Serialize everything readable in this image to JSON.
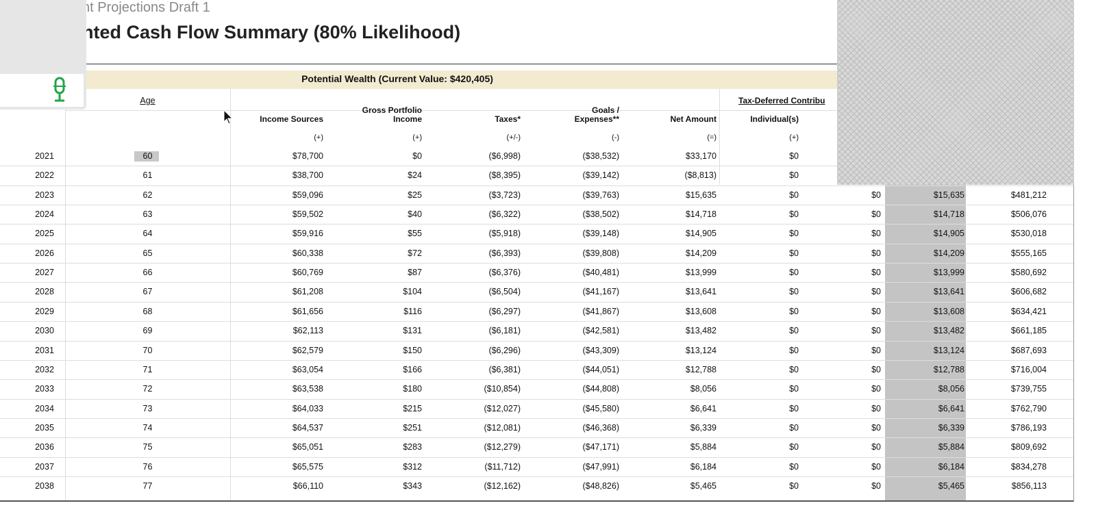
{
  "header": {
    "subtitle": "nt Projections Draft 1",
    "title": "nted Cash Flow Summary (80% Likelihood)"
  },
  "table": {
    "band": "Potential Wealth (Current Value: $420,405)",
    "group_headers": [
      "Age",
      "Tax-Deferred Contribu"
    ],
    "columns": [
      {
        "lines": [
          "Income Sources"
        ],
        "sign": "(+)"
      },
      {
        "lines": [
          "Gross Portfolio",
          "Income"
        ],
        "sign": "(+)"
      },
      {
        "lines": [
          "Taxes*"
        ],
        "sign": "(+/-)"
      },
      {
        "lines": [
          "Goals /",
          "Expenses**"
        ],
        "sign": "(-)"
      },
      {
        "lines": [
          "Net Amount"
        ],
        "sign": "(=)"
      },
      {
        "lines": [
          "Individual(s)"
        ],
        "sign": "(+)"
      }
    ],
    "rows": [
      [
        "2021",
        "60",
        "$78,700",
        "$0",
        "($6,998)",
        "($38,532)",
        "$33,170",
        "$0"
      ],
      [
        "2022",
        "61",
        "$38,700",
        "$24",
        "($8,395)",
        "($39,142)",
        "($8,813)",
        "$0"
      ],
      [
        "2023",
        "62",
        "$59,096",
        "$25",
        "($3,723)",
        "($39,763)",
        "$15,635",
        "$0",
        "$0",
        "$15,635",
        "$481,212"
      ],
      [
        "2024",
        "63",
        "$59,502",
        "$40",
        "($6,322)",
        "($38,502)",
        "$14,718",
        "$0",
        "$0",
        "$14,718",
        "$506,076"
      ],
      [
        "2025",
        "64",
        "$59,916",
        "$55",
        "($5,918)",
        "($39,148)",
        "$14,905",
        "$0",
        "$0",
        "$14,905",
        "$530,018"
      ],
      [
        "2026",
        "65",
        "$60,338",
        "$72",
        "($6,393)",
        "($39,808)",
        "$14,209",
        "$0",
        "$0",
        "$14,209",
        "$555,165"
      ],
      [
        "2027",
        "66",
        "$60,769",
        "$87",
        "($6,376)",
        "($40,481)",
        "$13,999",
        "$0",
        "$0",
        "$13,999",
        "$580,692"
      ],
      [
        "2028",
        "67",
        "$61,208",
        "$104",
        "($6,504)",
        "($41,167)",
        "$13,641",
        "$0",
        "$0",
        "$13,641",
        "$606,682"
      ],
      [
        "2029",
        "68",
        "$61,656",
        "$116",
        "($6,297)",
        "($41,867)",
        "$13,608",
        "$0",
        "$0",
        "$13,608",
        "$634,421"
      ],
      [
        "2030",
        "69",
        "$62,113",
        "$131",
        "($6,181)",
        "($42,581)",
        "$13,482",
        "$0",
        "$0",
        "$13,482",
        "$661,185"
      ],
      [
        "2031",
        "70",
        "$62,579",
        "$150",
        "($6,296)",
        "($43,309)",
        "$13,124",
        "$0",
        "$0",
        "$13,124",
        "$687,693"
      ],
      [
        "2032",
        "71",
        "$63,054",
        "$166",
        "($6,381)",
        "($44,051)",
        "$12,788",
        "$0",
        "$0",
        "$12,788",
        "$716,004"
      ],
      [
        "2033",
        "72",
        "$63,538",
        "$180",
        "($10,854)",
        "($44,808)",
        "$8,056",
        "$0",
        "$0",
        "$8,056",
        "$739,755"
      ],
      [
        "2034",
        "73",
        "$64,033",
        "$215",
        "($12,027)",
        "($45,580)",
        "$6,641",
        "$0",
        "$0",
        "$6,641",
        "$762,790"
      ],
      [
        "2035",
        "74",
        "$64,537",
        "$251",
        "($12,081)",
        "($46,368)",
        "$6,339",
        "$0",
        "$0",
        "$6,339",
        "$786,193"
      ],
      [
        "2036",
        "75",
        "$65,051",
        "$283",
        "($12,279)",
        "($47,171)",
        "$5,884",
        "$0",
        "$0",
        "$5,884",
        "$809,692"
      ],
      [
        "2037",
        "76",
        "$65,575",
        "$312",
        "($11,712)",
        "($47,991)",
        "$6,184",
        "$0",
        "$0",
        "$6,184",
        "$834,278"
      ],
      [
        "2038",
        "77",
        "$66,110",
        "$343",
        "($12,162)",
        "($48,826)",
        "$5,465",
        "$0",
        "$0",
        "$5,465",
        "$856,113"
      ]
    ]
  }
}
